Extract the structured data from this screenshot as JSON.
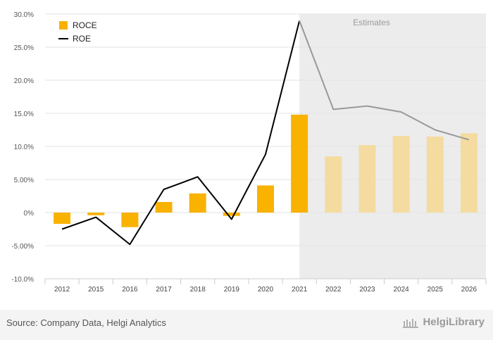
{
  "chart_data": {
    "type": "bar+line",
    "categories": [
      "2012",
      "2015",
      "2016",
      "2017",
      "2018",
      "2019",
      "2020",
      "2021",
      "2022",
      "2023",
      "2024",
      "2025",
      "2026"
    ],
    "series": [
      {
        "name": "ROCE",
        "type": "bar",
        "color": "#f9b200",
        "estimate_color": "#f4dca1",
        "values": [
          -1.7,
          -0.4,
          -2.2,
          1.6,
          2.9,
          -0.5,
          4.1,
          14.8,
          8.5,
          10.2,
          11.6,
          11.5,
          12.0
        ]
      },
      {
        "name": "ROE",
        "type": "line",
        "color": "#000000",
        "estimate_color": "#999999",
        "values": [
          -2.5,
          -0.7,
          -4.8,
          3.5,
          5.4,
          -1.0,
          8.8,
          29.0,
          15.6,
          16.1,
          15.2,
          12.5,
          11.0
        ]
      }
    ],
    "estimates_from_index": 7,
    "estimates_label": "Estimates",
    "ylim": [
      -10,
      30
    ],
    "yticks": [
      "-10.0%",
      "-5.00%",
      "0%",
      "5.00%",
      "10.0%",
      "15.0%",
      "20.0%",
      "25.0%",
      "30.0%"
    ],
    "ytick_values": [
      -10,
      -5,
      0,
      5,
      10,
      15,
      20,
      25,
      30
    ],
    "legend": "top-left",
    "grid": true
  },
  "footer": {
    "source": "Source: Company Data, Helgi Analytics",
    "brand": "HelgiLibrary"
  }
}
